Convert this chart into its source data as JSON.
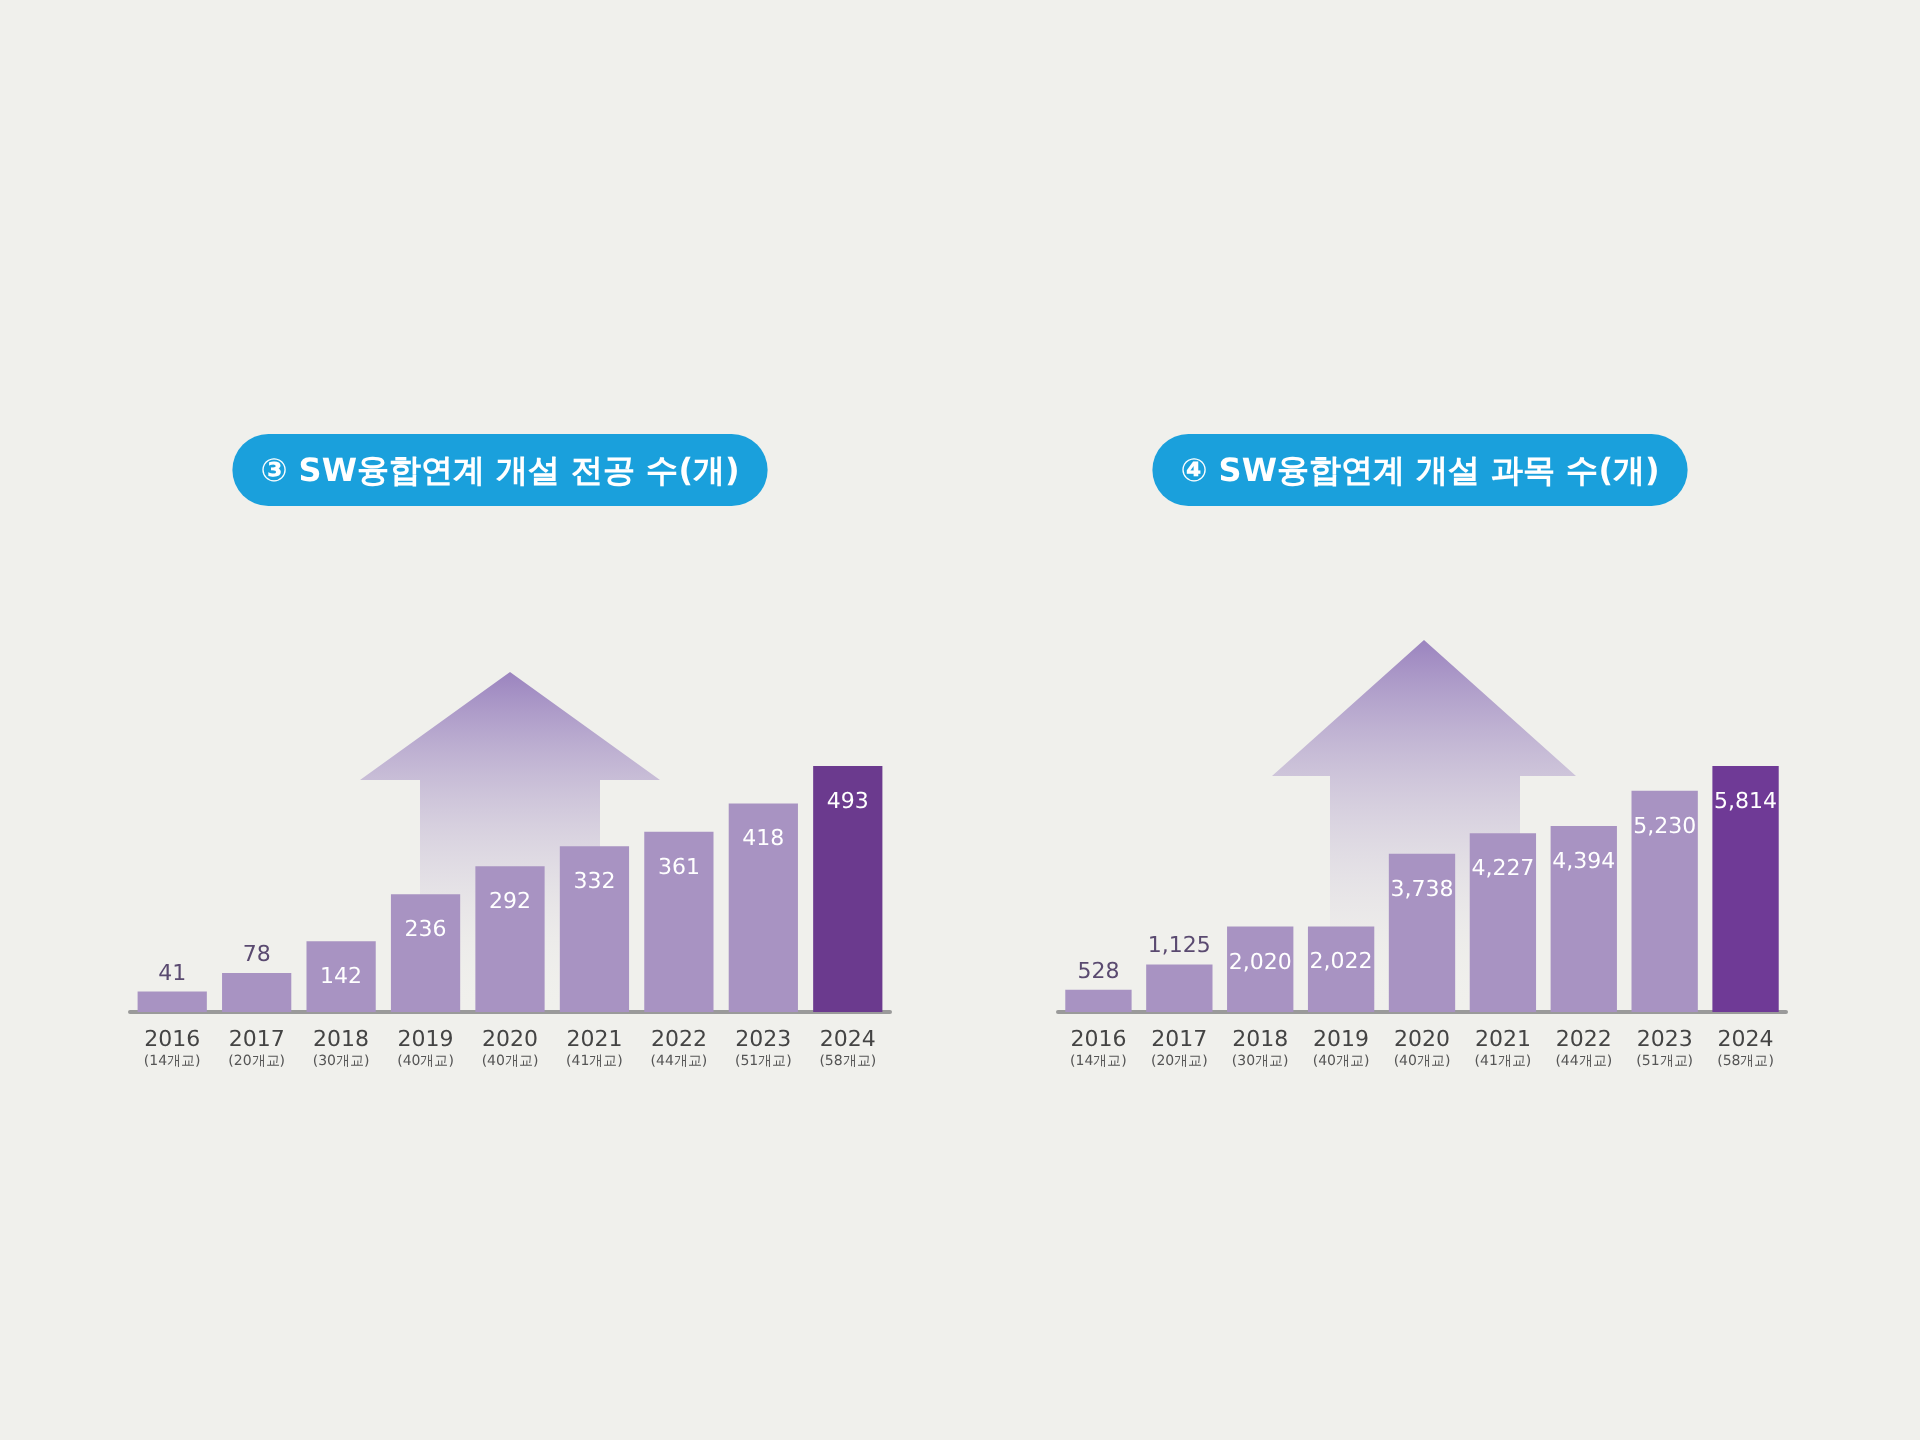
{
  "chart_data": [
    {
      "type": "bar",
      "title": "③ SW융합연계 개설 전공 수(개)",
      "categories": [
        "2016\n(14개교)",
        "2017\n(20개교)",
        "2018\n(30개교)",
        "2019\n(40개교)",
        "2020\n(40개교)",
        "2021\n(41개교)",
        "2022\n(44개교)",
        "2023\n(51개교)",
        "2024\n(58개교)"
      ],
      "values": [
        41,
        78,
        142,
        236,
        292,
        332,
        361,
        418,
        493
      ],
      "colors": [
        "#a893c2",
        "#a893c2",
        "#a893c2",
        "#a893c2",
        "#a893c2",
        "#a893c2",
        "#a893c2",
        "#a893c2",
        "#6b3a8e"
      ],
      "data_labels": true
    },
    {
      "type": "bar",
      "title": "④ SW융합연계 개설 과목 수(개)",
      "categories": [
        "2016\n(14개교)",
        "2017\n(20개교)",
        "2018\n(30개교)",
        "2019\n(40개교)",
        "2020\n(40개교)",
        "2021\n(41개교)",
        "2022\n(44개교)",
        "2023\n(51개교)",
        "2024\n(58개교)"
      ],
      "values": [
        528,
        1125,
        2020,
        2022,
        3738,
        4227,
        4394,
        5230,
        5814
      ],
      "colors": [
        "#a893c2",
        "#a893c2",
        "#a893c2",
        "#a893c2",
        "#a893c2",
        "#a893c2",
        "#a893c2",
        "#a893c2",
        "#6f3a96"
      ],
      "value_labels": [
        "528",
        "1,125",
        "2,020",
        "2,022",
        "3,738",
        "4,227",
        "4,394",
        "5,230",
        "5,814"
      ]
    }
  ]
}
